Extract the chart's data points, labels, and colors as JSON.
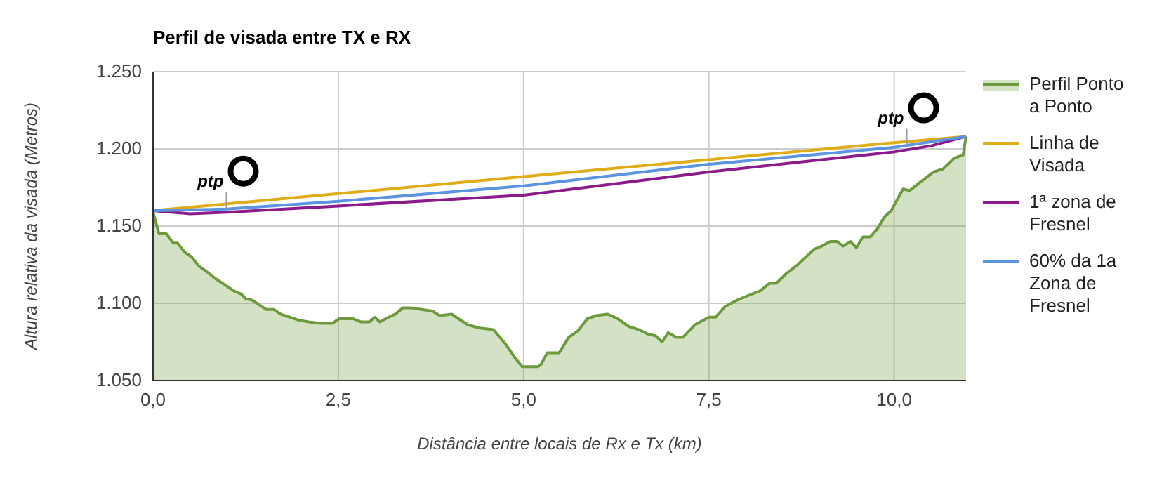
{
  "chart_data": {
    "type": "line",
    "title": "Perfil de visada entre TX e RX",
    "xlabel": "Distância entre locais de Rx e Tx (km)",
    "ylabel": "Altura relativa da visada (Metros)",
    "xlim": [
      0,
      10.97
    ],
    "ylim": [
      1050,
      1250
    ],
    "xticks": [
      {
        "value": 0,
        "label": "0,0"
      },
      {
        "value": 2.5,
        "label": "2,5"
      },
      {
        "value": 5,
        "label": "5,0"
      },
      {
        "value": 7.5,
        "label": "7,5"
      },
      {
        "value": 10,
        "label": "10,0"
      }
    ],
    "yticks": [
      {
        "value": 1050,
        "label": "1.050"
      },
      {
        "value": 1100,
        "label": "1.100"
      },
      {
        "value": 1150,
        "label": "1.150"
      },
      {
        "value": 1200,
        "label": "1.200"
      },
      {
        "value": 1250,
        "label": "1.250"
      }
    ],
    "grid": true,
    "legend": "right",
    "marker": "none",
    "line_style": "solid",
    "annotations": [
      {
        "text": "ptp",
        "x": 0.99,
        "y": 1161
      },
      {
        "text": "ptp",
        "x": 10.17,
        "y": 1202
      }
    ],
    "series": [
      {
        "name": "Perfil Ponto a Ponto",
        "type": "area",
        "color": "#6d9a3c",
        "x": [
          0,
          0.08,
          0.18,
          0.27,
          0.33,
          0.43,
          0.52,
          0.62,
          0.71,
          0.84,
          0.97,
          1.09,
          1.19,
          1.25,
          1.34,
          1.53,
          1.63,
          1.72,
          1.97,
          2.1,
          2.26,
          2.42,
          2.51,
          2.61,
          2.7,
          2.8,
          2.92,
          2.99,
          3.06,
          3.18,
          3.27,
          3.37,
          3.49,
          3.62,
          3.77,
          3.87,
          4.03,
          4.12,
          4.25,
          4.41,
          4.59,
          4.75,
          4.88,
          4.98,
          5.19,
          5.23,
          5.32,
          5.48,
          5.61,
          5.73,
          5.86,
          5.98,
          6.13,
          6.27,
          6.42,
          6.55,
          6.68,
          6.78,
          6.87,
          6.95,
          7.06,
          7.15,
          7.31,
          7.5,
          7.59,
          7.72,
          7.88,
          8.03,
          8.19,
          8.32,
          8.41,
          8.54,
          8.7,
          8.92,
          9.02,
          9.14,
          9.23,
          9.31,
          9.41,
          9.49,
          9.58,
          9.68,
          9.77,
          9.87,
          9.96,
          10.12,
          10.21,
          10.34,
          10.53,
          10.66,
          10.81,
          10.93,
          10.97
        ],
        "values": [
          1159,
          1145,
          1145,
          1139,
          1139,
          1133,
          1130,
          1124,
          1121,
          1116,
          1112,
          1108,
          1106,
          1103,
          1102,
          1096,
          1096,
          1093,
          1089,
          1088,
          1087,
          1087,
          1090,
          1090,
          1090,
          1088,
          1088,
          1091,
          1088,
          1091,
          1093,
          1097,
          1097,
          1096,
          1095,
          1092,
          1093,
          1090,
          1086,
          1084,
          1083,
          1074,
          1065,
          1059,
          1059,
          1060,
          1068,
          1068,
          1078,
          1082,
          1090,
          1092,
          1093,
          1090,
          1085,
          1083,
          1080,
          1079,
          1075,
          1081,
          1078,
          1078,
          1086,
          1091,
          1091,
          1098,
          1102,
          1105,
          1108,
          1113,
          1113,
          1119,
          1125,
          1135,
          1137,
          1140,
          1140,
          1137,
          1140,
          1136,
          1143,
          1143,
          1148,
          1156,
          1160,
          1174,
          1173,
          1178,
          1185,
          1187,
          1194,
          1196,
          1208
        ]
      },
      {
        "name": "Linha de Visada",
        "color": "#e0ac18",
        "x": [
          0,
          2.5,
          5,
          7.5,
          10,
          10.97
        ],
        "values": [
          1160,
          1171,
          1182,
          1193,
          1204,
          1208
        ]
      },
      {
        "name": "1ª zona de Fresnel",
        "color": "#8b1a8b",
        "x": [
          0,
          0.5,
          1,
          2.5,
          5,
          7.5,
          10,
          10.5,
          10.97
        ],
        "values": [
          1160,
          1158,
          1159,
          1163,
          1170,
          1185,
          1198,
          1202,
          1208
        ]
      },
      {
        "name": "60% da 1a Zona de Fresnel",
        "color": "#5b94e0",
        "x": [
          0,
          1,
          2.5,
          5,
          7.5,
          10,
          10.97
        ],
        "values": [
          1160,
          1161,
          1166,
          1176,
          1190,
          1201,
          1208
        ]
      }
    ]
  }
}
